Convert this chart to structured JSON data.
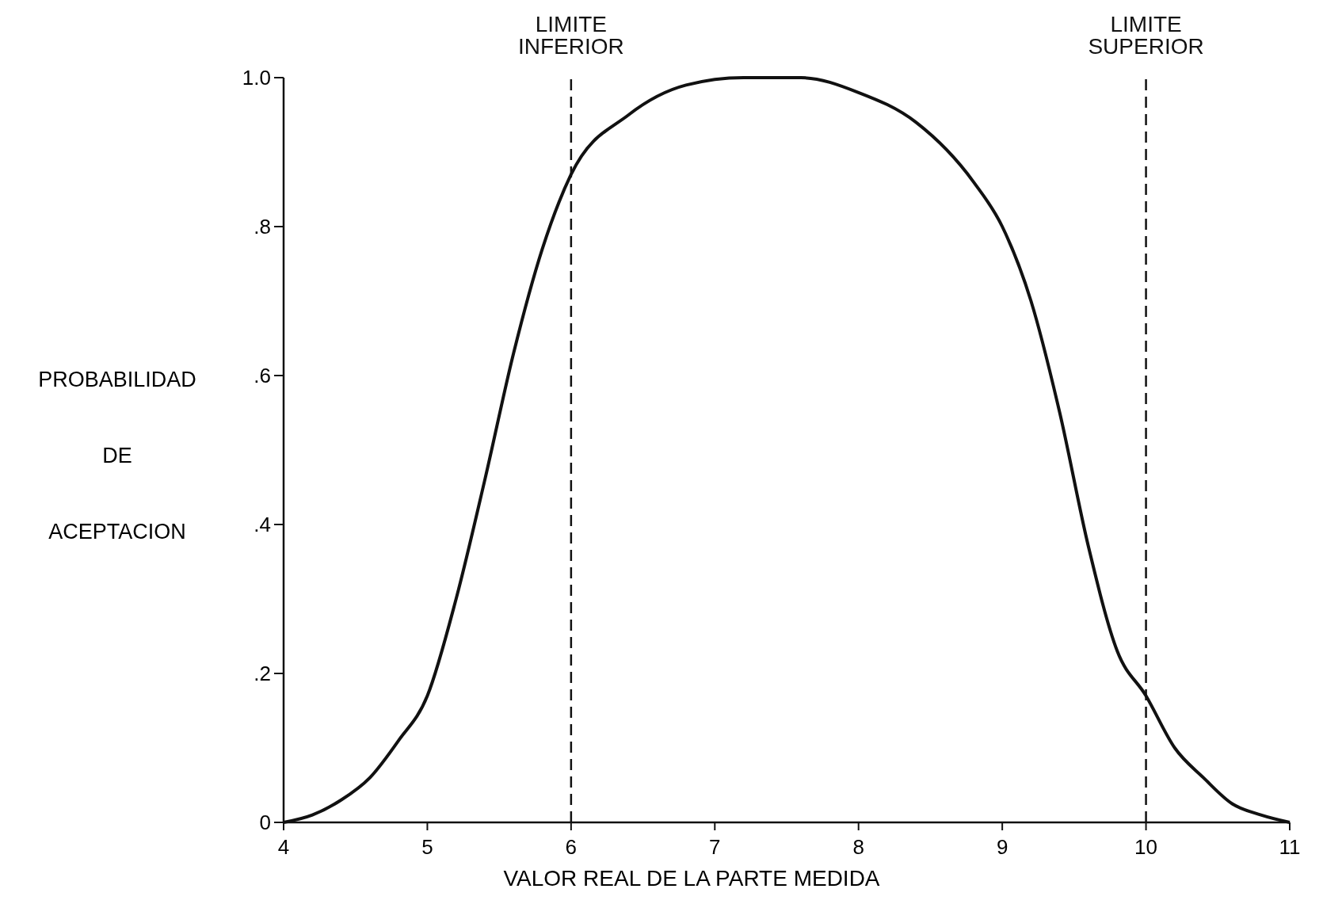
{
  "chart_data": {
    "type": "line",
    "xlabel": "VALOR REAL DE LA PARTE MEDIDA",
    "ylabel": "PROBABILIDAD DE ACEPTACION",
    "x": [
      4,
      4.2,
      4.4,
      4.6,
      4.8,
      5,
      5.2,
      5.4,
      5.6,
      5.8,
      6,
      6.4,
      6.8,
      7.2,
      7.6,
      8,
      8.4,
      8.8,
      9,
      9.2,
      9.4,
      9.6,
      9.8,
      10,
      10.2,
      10.4,
      10.6,
      10.8,
      11
    ],
    "series": [
      {
        "color": "#111111",
        "values": [
          0,
          0.01,
          0.03,
          0.06,
          0.11,
          0.17,
          0.3,
          0.46,
          0.63,
          0.77,
          0.87,
          0.95,
          0.99,
          1,
          1,
          0.98,
          0.94,
          0.86,
          0.8,
          0.7,
          0.55,
          0.37,
          0.23,
          0.17,
          0.1,
          0.06,
          0.025,
          0.01,
          0
        ]
      }
    ],
    "xlim": [
      4,
      11
    ],
    "xticks": [
      4,
      5,
      6,
      7,
      8,
      9,
      10,
      11
    ],
    "ylim": [
      0,
      1
    ],
    "yticks": [
      0,
      {
        "value": 0.2,
        "label": ".2"
      },
      {
        "value": 0.4,
        "label": ".4"
      },
      {
        "value": 0.6,
        "label": ".6"
      },
      {
        "value": 0.8,
        "label": ".8"
      },
      {
        "value": 1,
        "label": "1.0"
      }
    ],
    "marker": "none",
    "line_style": "solid",
    "ref_lines": [
      {
        "axis": "x",
        "value": 6,
        "label": "LIMITE INFERIOR",
        "line_style": "dashed",
        "color": "#111111"
      },
      {
        "axis": "x",
        "value": 10,
        "label": "LIMITE SUPERIOR",
        "line_style": "dashed",
        "color": "#111111"
      }
    ]
  }
}
